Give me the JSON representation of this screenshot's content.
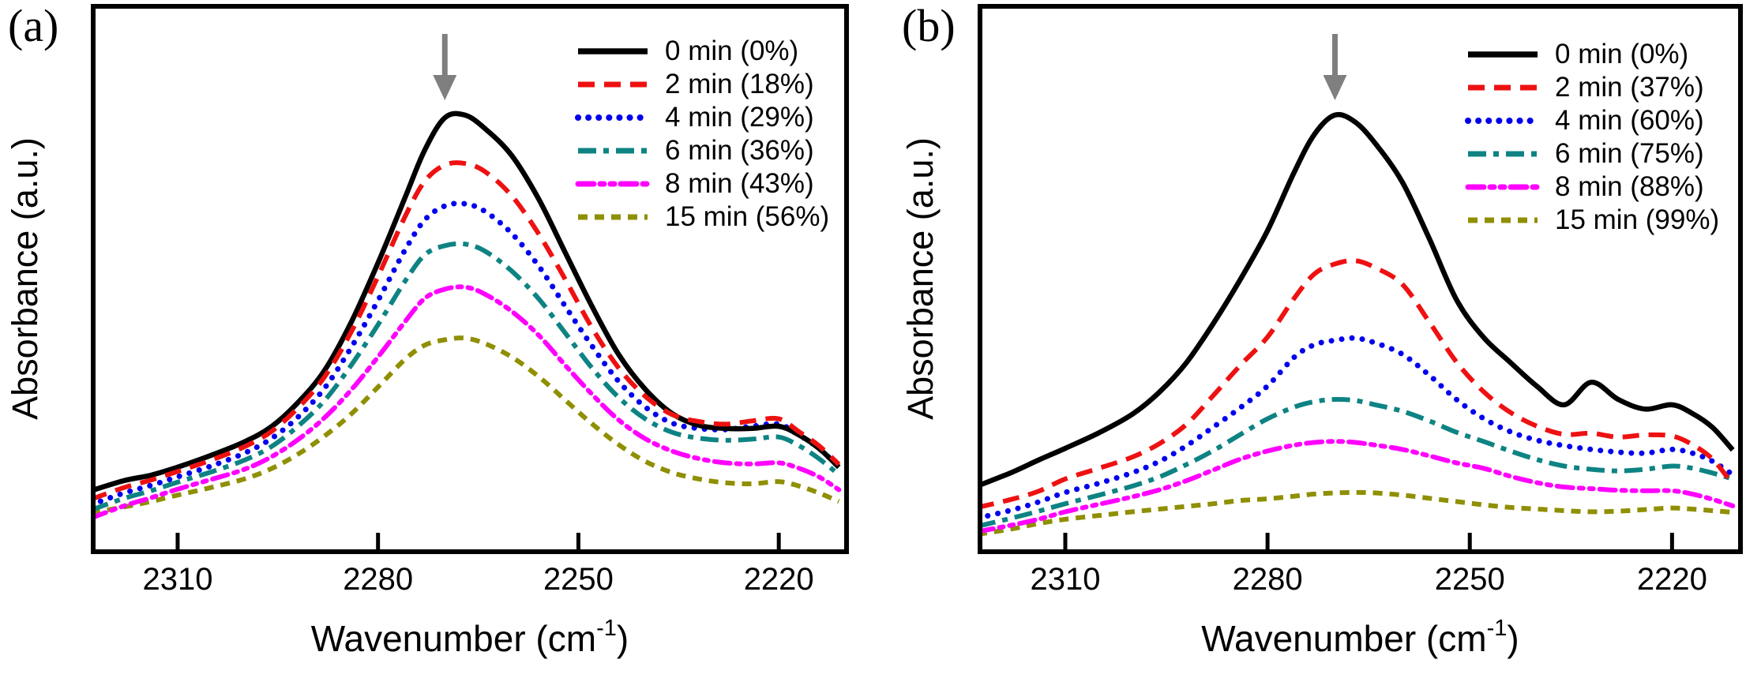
{
  "figure_background": "#ffffff",
  "arrow_color": "#7f7f7f",
  "chart_data": [
    {
      "type": "line",
      "panel_letter": "(a)",
      "ylabel": "Absorbance (a.u.)",
      "xlabel": "Wavenumber (cm⁻¹)",
      "xlabel_parts": {
        "main": "Wavenumber (cm",
        "sup": "-1",
        "close": ")"
      },
      "x_axis": {
        "left_value": 2323,
        "right_value": 2209.5,
        "ticks": [
          2310,
          2280,
          2250,
          2220
        ],
        "reversed": true,
        "grid": false
      },
      "y_axis": {
        "label": "Absorbance (a.u.)",
        "ticks_visible": false,
        "units": "a.u.",
        "norm_range": [
          0,
          1
        ]
      },
      "arrow_annotation": {
        "x": 2270,
        "direction": "down"
      },
      "legend_position": "top-right",
      "x": [
        2323,
        2318,
        2314,
        2310,
        2305,
        2300,
        2296,
        2292,
        2288,
        2284,
        2280,
        2276,
        2273,
        2270,
        2267,
        2264,
        2260,
        2256,
        2252,
        2248,
        2244,
        2240,
        2236,
        2232,
        2228,
        2224,
        2220,
        2217,
        2214,
        2211
      ],
      "series": [
        {
          "name": "0 min (0%)",
          "time_min": 0,
          "conversion_pct": 0,
          "color": "#000000",
          "line_style": "solid",
          "values": [
            0.106,
            0.125,
            0.135,
            0.15,
            0.172,
            0.197,
            0.225,
            0.27,
            0.33,
            0.42,
            0.53,
            0.65,
            0.74,
            0.8,
            0.805,
            0.78,
            0.73,
            0.65,
            0.55,
            0.45,
            0.36,
            0.295,
            0.25,
            0.228,
            0.222,
            0.222,
            0.226,
            0.21,
            0.185,
            0.15
          ]
        },
        {
          "name": "2 min (18%)",
          "time_min": 2,
          "conversion_pct": 18,
          "color": "#ee1111",
          "line_style": "dashed",
          "values": [
            0.09,
            0.112,
            0.126,
            0.142,
            0.163,
            0.188,
            0.216,
            0.26,
            0.318,
            0.402,
            0.505,
            0.615,
            0.682,
            0.712,
            0.715,
            0.7,
            0.655,
            0.585,
            0.5,
            0.41,
            0.335,
            0.282,
            0.248,
            0.235,
            0.23,
            0.236,
            0.24,
            0.216,
            0.19,
            0.155
          ]
        },
        {
          "name": "4 min (29%)",
          "time_min": 4,
          "conversion_pct": 29,
          "color": "#0000ee",
          "line_style": "dotted",
          "values": [
            0.08,
            0.102,
            0.116,
            0.132,
            0.152,
            0.176,
            0.203,
            0.243,
            0.297,
            0.373,
            0.46,
            0.553,
            0.61,
            0.636,
            0.64,
            0.626,
            0.585,
            0.525,
            0.45,
            0.376,
            0.31,
            0.262,
            0.232,
            0.222,
            0.22,
            0.226,
            0.23,
            0.21,
            0.185,
            0.15
          ]
        },
        {
          "name": "6 min (36%)",
          "time_min": 6,
          "conversion_pct": 36,
          "color": "#0e8383",
          "line_style": "dash-dot",
          "values": [
            0.07,
            0.092,
            0.106,
            0.122,
            0.141,
            0.163,
            0.188,
            0.226,
            0.274,
            0.34,
            0.415,
            0.495,
            0.545,
            0.562,
            0.565,
            0.552,
            0.515,
            0.464,
            0.4,
            0.335,
            0.28,
            0.24,
            0.215,
            0.204,
            0.2,
            0.202,
            0.206,
            0.19,
            0.166,
            0.136
          ]
        },
        {
          "name": "8 min (43%)",
          "time_min": 8,
          "conversion_pct": 43,
          "color": "#ff00ff",
          "line_style": "dash-dot-dot",
          "values": [
            0.055,
            0.078,
            0.093,
            0.109,
            0.127,
            0.146,
            0.169,
            0.201,
            0.242,
            0.294,
            0.355,
            0.42,
            0.464,
            0.481,
            0.485,
            0.472,
            0.44,
            0.396,
            0.34,
            0.286,
            0.238,
            0.203,
            0.18,
            0.166,
            0.158,
            0.156,
            0.158,
            0.148,
            0.132,
            0.108
          ]
        },
        {
          "name": "15 min (56%)",
          "time_min": 15,
          "conversion_pct": 56,
          "color": "#8f8f00",
          "line_style": "short-dash",
          "values": [
            0.065,
            0.076,
            0.086,
            0.098,
            0.112,
            0.128,
            0.147,
            0.174,
            0.208,
            0.249,
            0.299,
            0.35,
            0.377,
            0.387,
            0.39,
            0.38,
            0.355,
            0.319,
            0.275,
            0.231,
            0.192,
            0.161,
            0.14,
            0.128,
            0.121,
            0.119,
            0.123,
            0.115,
            0.102,
            0.086
          ]
        }
      ]
    },
    {
      "type": "line",
      "panel_letter": "(b)",
      "ylabel": "Absorbance (a.u.)",
      "xlabel": "Wavenumber (cm⁻¹)",
      "xlabel_parts": {
        "main": "Wavenumber (cm",
        "sup": "-1",
        "close": ")"
      },
      "x_axis": {
        "left_value": 2323,
        "right_value": 2209.5,
        "ticks": [
          2310,
          2280,
          2250,
          2220
        ],
        "reversed": true,
        "grid": false
      },
      "y_axis": {
        "label": "Absorbance (a.u.)",
        "ticks_visible": false,
        "units": "a.u.",
        "norm_range": [
          0,
          1
        ]
      },
      "arrow_annotation": {
        "x": 2270,
        "direction": "down"
      },
      "legend_position": "top-right",
      "x": [
        2323,
        2318,
        2314,
        2310,
        2305,
        2300,
        2296,
        2292,
        2288,
        2284,
        2280,
        2276,
        2273,
        2270,
        2267,
        2264,
        2260,
        2256,
        2252,
        2248,
        2244,
        2240,
        2236,
        2232,
        2228,
        2224,
        2220,
        2217,
        2214,
        2211
      ],
      "series": [
        {
          "name": "0 min (0%)",
          "time_min": 0,
          "conversion_pct": 0,
          "color": "#000000",
          "line_style": "solid",
          "values": [
            0.115,
            0.14,
            0.163,
            0.185,
            0.214,
            0.249,
            0.29,
            0.345,
            0.418,
            0.5,
            0.59,
            0.7,
            0.77,
            0.805,
            0.792,
            0.752,
            0.68,
            0.575,
            0.462,
            0.392,
            0.345,
            0.3,
            0.266,
            0.308,
            0.276,
            0.258,
            0.266,
            0.25,
            0.224,
            0.182
          ]
        },
        {
          "name": "2 min (37%)",
          "time_min": 2,
          "conversion_pct": 37,
          "color": "#ee1111",
          "line_style": "dashed",
          "values": [
            0.075,
            0.09,
            0.105,
            0.128,
            0.148,
            0.169,
            0.194,
            0.23,
            0.284,
            0.34,
            0.392,
            0.465,
            0.51,
            0.528,
            0.534,
            0.521,
            0.49,
            0.42,
            0.346,
            0.291,
            0.252,
            0.226,
            0.211,
            0.213,
            0.206,
            0.21,
            0.208,
            0.192,
            0.165,
            0.118
          ]
        },
        {
          "name": "4 min (60%)",
          "time_min": 4,
          "conversion_pct": 60,
          "color": "#0000ee",
          "line_style": "dotted",
          "values": [
            0.055,
            0.07,
            0.085,
            0.103,
            0.12,
            0.14,
            0.161,
            0.19,
            0.225,
            0.261,
            0.301,
            0.355,
            0.378,
            0.386,
            0.39,
            0.381,
            0.36,
            0.321,
            0.276,
            0.241,
            0.216,
            0.2,
            0.19,
            0.183,
            0.178,
            0.176,
            0.183,
            0.176,
            0.161,
            0.136
          ]
        },
        {
          "name": "6 min (75%)",
          "time_min": 6,
          "conversion_pct": 75,
          "color": "#0e8383",
          "line_style": "dash-dot",
          "values": [
            0.04,
            0.055,
            0.068,
            0.082,
            0.098,
            0.115,
            0.132,
            0.155,
            0.181,
            0.211,
            0.24,
            0.262,
            0.272,
            0.276,
            0.274,
            0.266,
            0.254,
            0.236,
            0.215,
            0.198,
            0.18,
            0.164,
            0.152,
            0.146,
            0.143,
            0.146,
            0.152,
            0.148,
            0.139,
            0.128
          ]
        },
        {
          "name": "8 min (88%)",
          "time_min": 8,
          "conversion_pct": 88,
          "color": "#ff00ff",
          "line_style": "dash-dot-dot",
          "values": [
            0.03,
            0.042,
            0.053,
            0.067,
            0.081,
            0.095,
            0.108,
            0.125,
            0.145,
            0.165,
            0.18,
            0.191,
            0.196,
            0.198,
            0.196,
            0.191,
            0.183,
            0.171,
            0.158,
            0.148,
            0.133,
            0.121,
            0.113,
            0.11,
            0.107,
            0.106,
            0.106,
            0.1,
            0.09,
            0.078
          ]
        },
        {
          "name": "15 min (99%)",
          "time_min": 15,
          "conversion_pct": 99,
          "color": "#8f8f00",
          "line_style": "short-dash",
          "values": [
            0.025,
            0.035,
            0.045,
            0.053,
            0.06,
            0.067,
            0.072,
            0.077,
            0.082,
            0.088,
            0.091,
            0.096,
            0.1,
            0.102,
            0.103,
            0.102,
            0.098,
            0.092,
            0.086,
            0.08,
            0.075,
            0.072,
            0.069,
            0.067,
            0.068,
            0.071,
            0.074,
            0.072,
            0.069,
            0.066
          ]
        }
      ]
    }
  ]
}
